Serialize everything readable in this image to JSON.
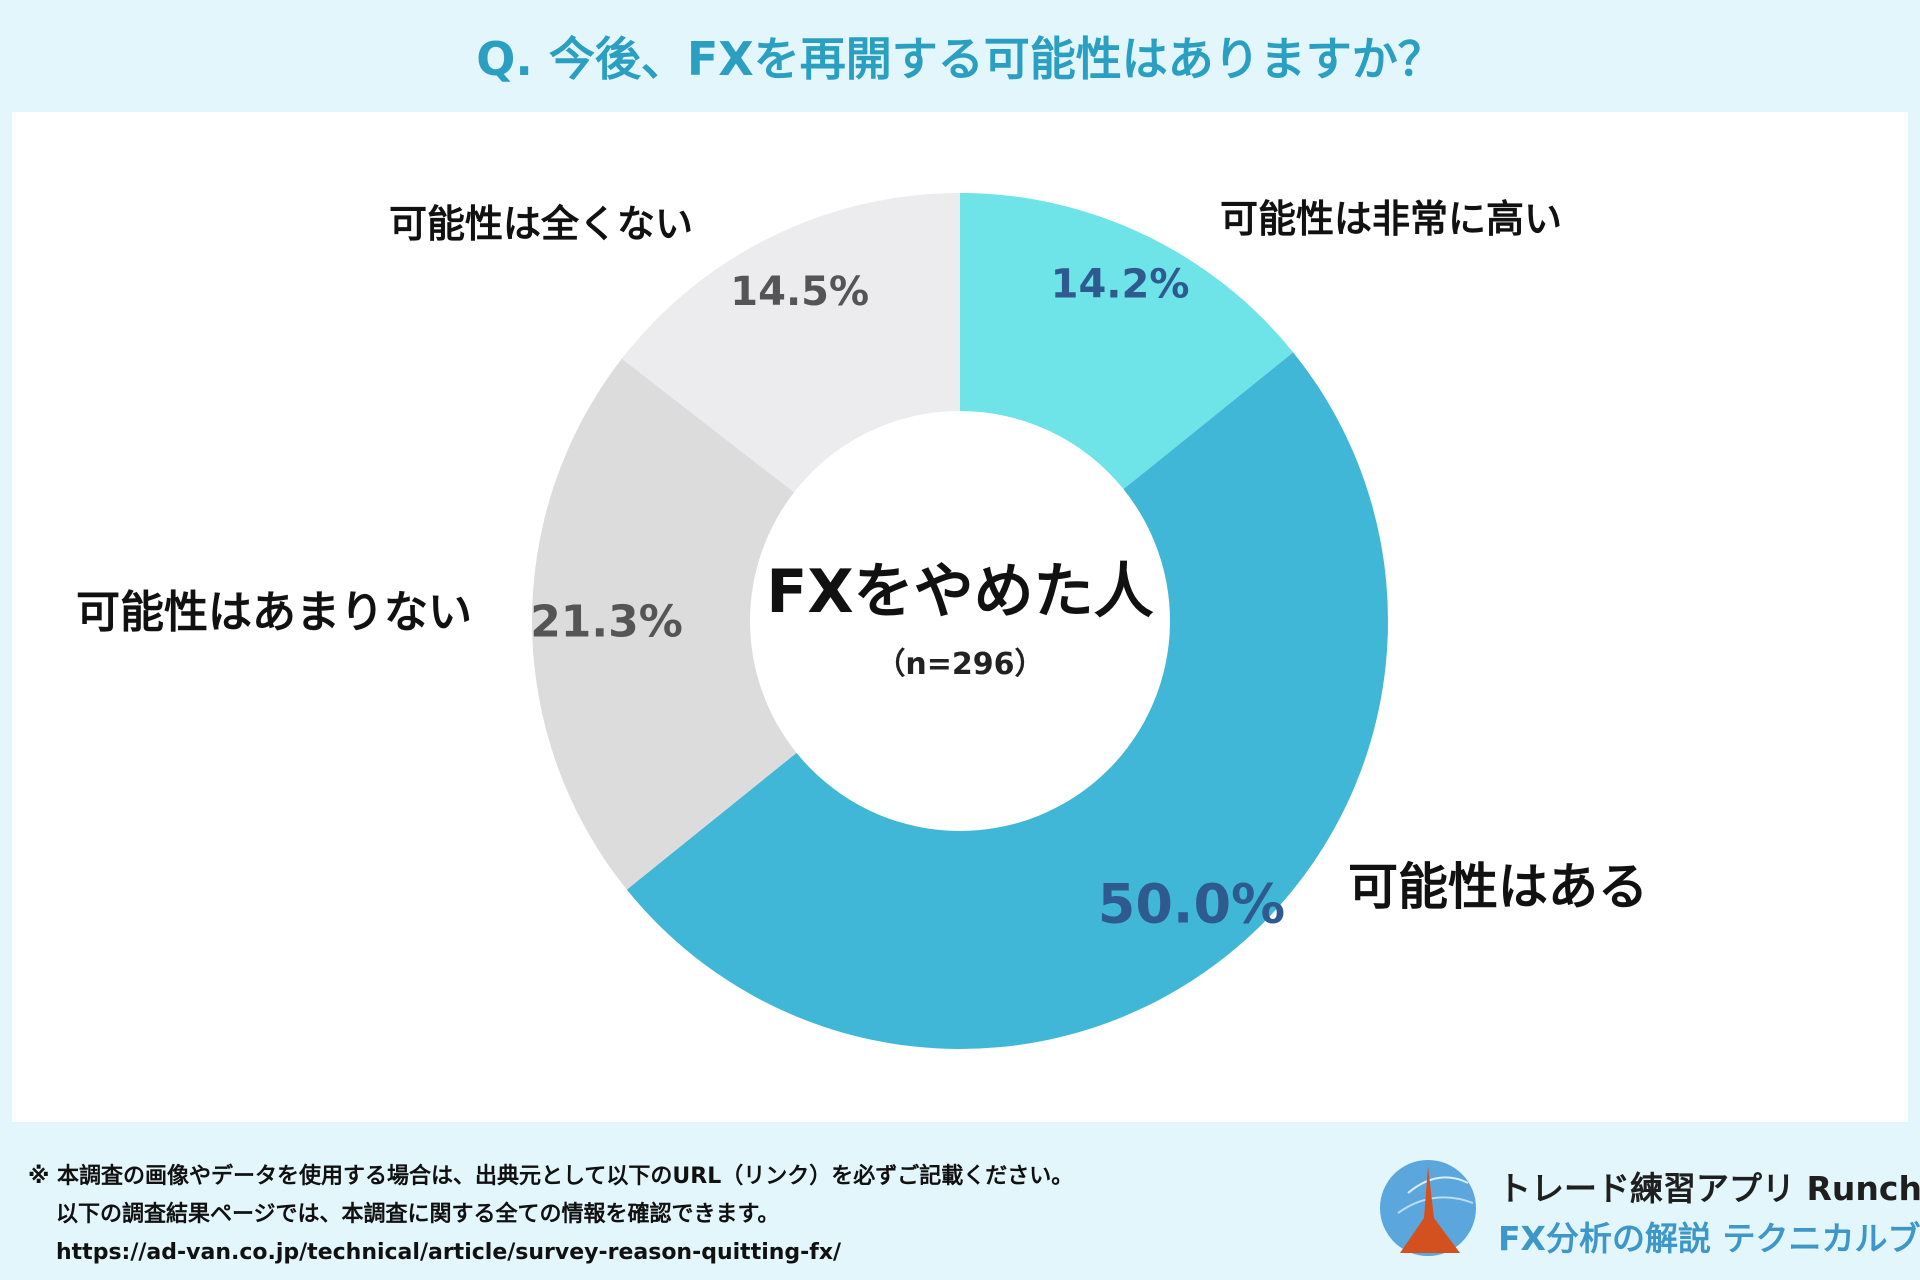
{
  "title": "Q. 今後、FXを再開する可能性はありますか？",
  "center": {
    "main": "FXをやめた人",
    "sub": "（n=296）"
  },
  "chart_data": {
    "type": "pie",
    "categories": [
      "可能性は非常に高い",
      "可能性はある",
      "可能性はあまりない",
      "可能性は全くない"
    ],
    "values": [
      14.2,
      50.0,
      21.3,
      14.5
    ],
    "value_labels": [
      "14.2%",
      "50.0%",
      "21.3%",
      "14.5%"
    ],
    "colors": [
      "#6ee3e8",
      "#40b7d6",
      "#dcdcdc",
      "#ececee"
    ],
    "value_label_colors": [
      "#2f5a8f",
      "#2f5a8f",
      "#555555",
      "#555555"
    ],
    "start": "top",
    "direction": "clockwise",
    "donut": true
  },
  "footer": {
    "note1": "※ 本調査の画像やデータを使用する場合は、出典元として以下のURL（リンク）を必ずご記載ください。",
    "note2": "以下の調査結果ページでは、本調査に関する全ての情報を確認できます。",
    "url": "https://ad-van.co.jp/technical/article/survey-reason-quitting-fx/",
    "brand_line1": "トレード練習アプリ Runcha",
    "brand_line2": "FX分析の解説 テクニカルブック",
    "logo_colors": [
      "#5ba6dc",
      "#d2511f"
    ]
  }
}
